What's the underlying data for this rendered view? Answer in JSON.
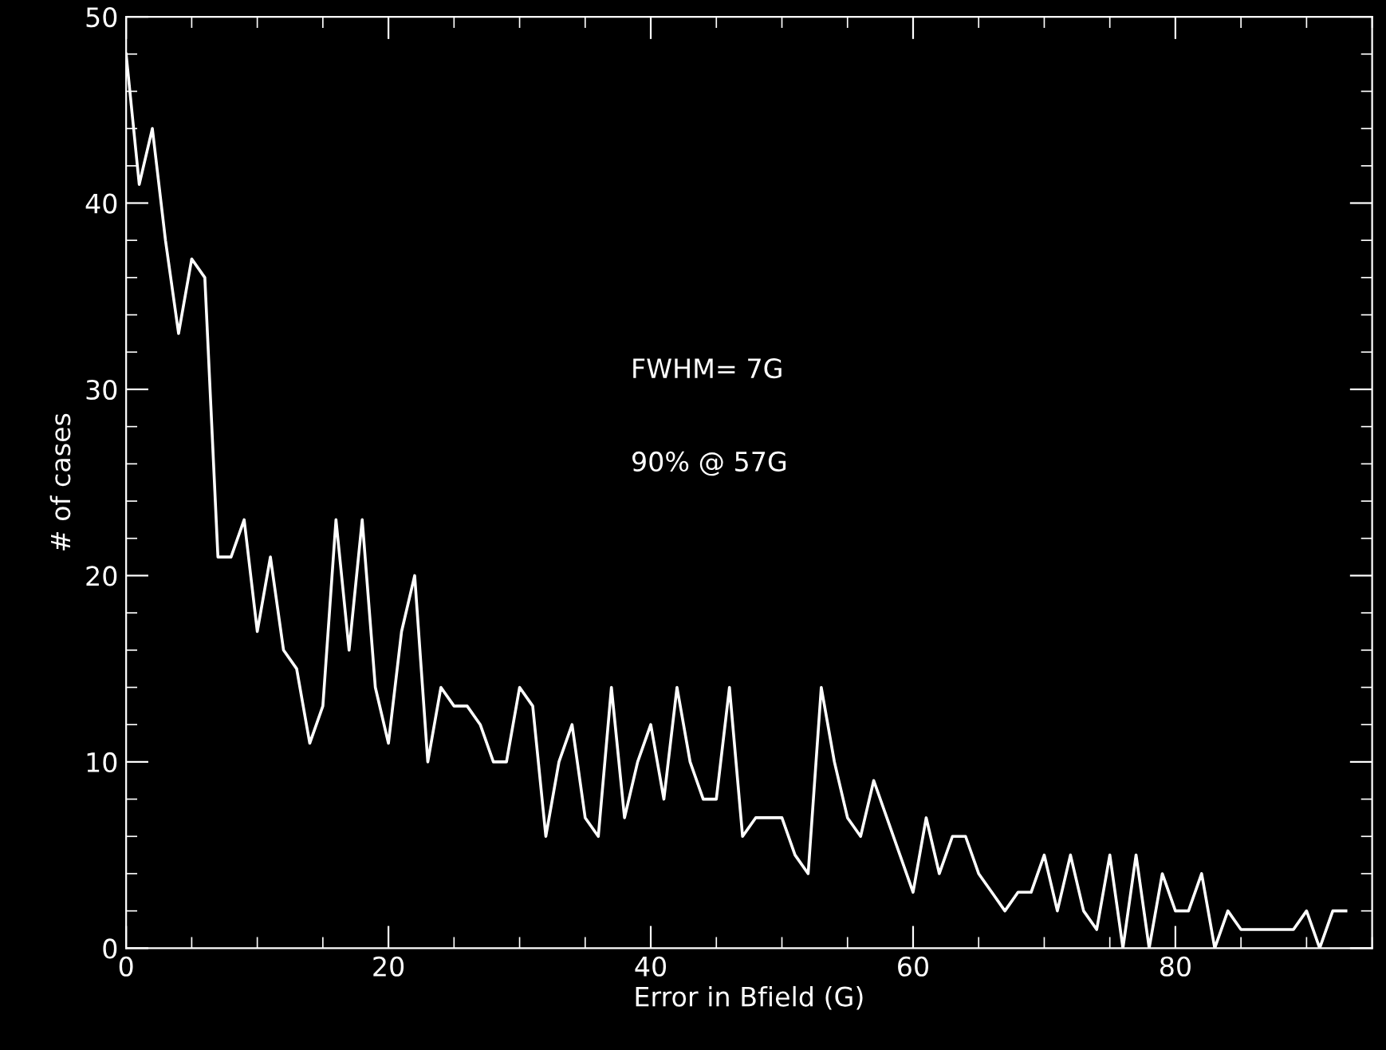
{
  "chart_data": {
    "type": "line",
    "xlabel": "Error in Bfield (G)",
    "ylabel": "# of cases",
    "x": [
      0,
      1,
      2,
      3,
      4,
      5,
      6,
      7,
      8,
      9,
      10,
      11,
      12,
      13,
      14,
      15,
      16,
      17,
      18,
      19,
      20,
      21,
      22,
      23,
      24,
      25,
      26,
      27,
      28,
      29,
      30,
      31,
      32,
      33,
      34,
      35,
      36,
      37,
      38,
      39,
      40,
      41,
      42,
      43,
      44,
      45,
      46,
      47,
      48,
      49,
      50,
      51,
      52,
      53,
      54,
      55,
      56,
      57,
      58,
      59,
      60,
      61,
      62,
      63,
      64,
      65,
      66,
      67,
      68,
      69,
      70,
      71,
      72,
      73,
      74,
      75,
      76,
      77,
      78,
      79,
      80,
      81,
      82,
      83,
      84,
      85,
      86,
      87,
      88,
      89,
      90,
      91,
      92,
      93
    ],
    "series": [
      {
        "color": "#ffffff",
        "values": [
          48,
          41,
          44,
          38,
          33,
          37,
          36,
          21,
          21,
          23,
          17,
          21,
          16,
          15,
          11,
          13,
          23,
          16,
          23,
          14,
          11,
          17,
          20,
          10,
          14,
          13,
          13,
          12,
          10,
          10,
          14,
          13,
          6,
          10,
          12,
          7,
          6,
          14,
          7,
          10,
          12,
          8,
          14,
          10,
          8,
          8,
          14,
          6,
          7,
          7,
          7,
          5,
          4,
          14,
          10,
          7,
          6,
          9,
          7,
          5,
          3,
          7,
          4,
          6,
          6,
          4,
          3,
          2,
          3,
          3,
          5,
          2,
          5,
          2,
          1,
          5,
          0,
          5,
          0,
          4,
          2,
          2,
          4,
          0,
          2,
          1,
          1,
          1,
          1,
          1,
          2,
          0,
          2,
          2
        ]
      }
    ],
    "xlim": [
      0,
      95
    ],
    "xticks": [
      0,
      20,
      40,
      60,
      80
    ],
    "ylim": [
      0,
      50
    ],
    "yticks": [
      0,
      10,
      20,
      30,
      40,
      50
    ],
    "annotations": [
      "FWHM= 7G",
      "90% @ 57G"
    ],
    "grid": false,
    "legend": false,
    "marker": "none",
    "line_style": "solid"
  }
}
